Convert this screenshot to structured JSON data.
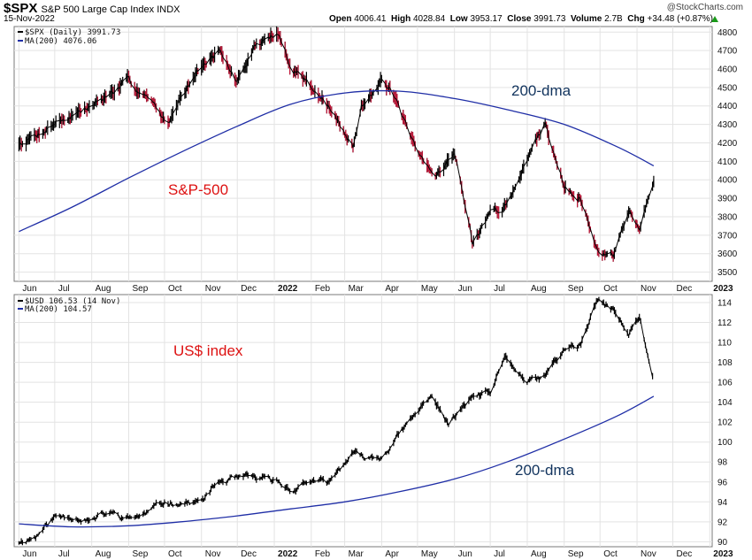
{
  "header": {
    "symbol": "$SPX",
    "description": "S&P 500 Large Cap Index INDX",
    "date": "15-Nov-2022",
    "brand": "@StockCharts.com",
    "ohlc": {
      "open_label": "Open",
      "open": "4006.41",
      "high_label": "High",
      "high": "4028.84",
      "low_label": "Low",
      "low": "3953.17",
      "close_label": "Close",
      "close": "3991.73",
      "volume_label": "Volume",
      "volume": "2.7B",
      "chg_label": "Chg",
      "chg": "+34.48 (+0.87%)"
    }
  },
  "chart_data": [
    {
      "type": "line",
      "legend": [
        "$SPX (Daily) 3991.73",
        "MA(200) 4076.06"
      ],
      "annotations": [
        "S&P-500",
        "200-dma"
      ],
      "x_ticks": [
        "Jun",
        "Jul",
        "Aug",
        "Sep",
        "Oct",
        "Nov",
        "Dec",
        "2022",
        "Feb",
        "Mar",
        "Apr",
        "May",
        "Jun",
        "Jul",
        "Aug",
        "Sep",
        "Oct",
        "Nov",
        "Dec",
        "2023"
      ],
      "y_ticks": [
        3500,
        3600,
        3700,
        3800,
        3900,
        4000,
        4100,
        4200,
        4300,
        4400,
        4500,
        4600,
        4700,
        4800
      ],
      "ylim": [
        3450,
        4830
      ],
      "xlim": [
        "2021-05-28",
        "2023-01-03"
      ],
      "log_scale": false,
      "grid": true,
      "series": [
        {
          "name": "$SPX (Daily)",
          "color": "#000000",
          "x": [
            "2021-06-01",
            "2021-06-15",
            "2021-07-01",
            "2021-07-15",
            "2021-08-01",
            "2021-08-15",
            "2021-09-01",
            "2021-09-15",
            "2021-10-04",
            "2021-10-15",
            "2021-11-01",
            "2021-11-15",
            "2021-12-01",
            "2021-12-15",
            "2022-01-03",
            "2022-01-15",
            "2022-02-01",
            "2022-02-15",
            "2022-03-08",
            "2022-03-15",
            "2022-04-01",
            "2022-04-15",
            "2022-05-01",
            "2022-05-15",
            "2022-06-01",
            "2022-06-16",
            "2022-07-01",
            "2022-07-15",
            "2022-08-01",
            "2022-08-16",
            "2022-09-01",
            "2022-09-15",
            "2022-09-30",
            "2022-10-12",
            "2022-10-25",
            "2022-11-03",
            "2022-11-15"
          ],
          "values": [
            4200,
            4240,
            4310,
            4350,
            4400,
            4460,
            4530,
            4460,
            4300,
            4470,
            4620,
            4690,
            4530,
            4720,
            4790,
            4620,
            4510,
            4400,
            4170,
            4390,
            4560,
            4400,
            4130,
            4020,
            4150,
            3660,
            3820,
            3860,
            4120,
            4300,
            3980,
            3900,
            3590,
            3580,
            3850,
            3720,
            4000
          ]
        },
        {
          "name": "MA(200)",
          "color": "#1f2ea6",
          "x": [
            "2021-06-01",
            "2021-07-15",
            "2021-09-01",
            "2021-10-15",
            "2021-12-01",
            "2022-01-15",
            "2022-03-01",
            "2022-04-15",
            "2022-06-01",
            "2022-07-15",
            "2022-09-01",
            "2022-10-15",
            "2022-11-15"
          ],
          "values": [
            3720,
            3850,
            4010,
            4150,
            4290,
            4410,
            4470,
            4480,
            4440,
            4380,
            4300,
            4180,
            4076
          ]
        }
      ]
    },
    {
      "type": "line",
      "legend": [
        "$USD 106.53 (14 Nov)",
        "MA(200) 104.57"
      ],
      "annotations": [
        "US$ index",
        "200-dma"
      ],
      "x_ticks": [
        "Jun",
        "Jul",
        "Aug",
        "Sep",
        "Oct",
        "Nov",
        "Dec",
        "2022",
        "Feb",
        "Mar",
        "Apr",
        "May",
        "Jun",
        "Jul",
        "Aug",
        "Sep",
        "Oct",
        "Nov",
        "Dec",
        "2023"
      ],
      "y_ticks": [
        90,
        92,
        94,
        96,
        98,
        100,
        102,
        104,
        106,
        108,
        110,
        112,
        114
      ],
      "ylim": [
        89.5,
        114.8
      ],
      "xlim": [
        "2021-05-28",
        "2023-01-03"
      ],
      "log_scale": false,
      "grid": true,
      "series": [
        {
          "name": "$USD",
          "color": "#000000",
          "x": [
            "2021-06-01",
            "2021-06-15",
            "2021-07-01",
            "2021-07-15",
            "2021-08-01",
            "2021-08-15",
            "2021-09-01",
            "2021-09-15",
            "2021-10-01",
            "2021-10-15",
            "2021-11-01",
            "2021-11-15",
            "2021-12-01",
            "2021-12-15",
            "2022-01-03",
            "2022-01-15",
            "2022-02-01",
            "2022-02-15",
            "2022-03-08",
            "2022-03-15",
            "2022-04-01",
            "2022-04-15",
            "2022-05-01",
            "2022-05-13",
            "2022-05-27",
            "2022-06-15",
            "2022-07-01",
            "2022-07-14",
            "2022-08-01",
            "2022-08-15",
            "2022-09-01",
            "2022-09-15",
            "2022-09-28",
            "2022-10-12",
            "2022-10-25",
            "2022-11-03",
            "2022-11-14"
          ],
          "values": [
            90.0,
            90.5,
            92.5,
            92.6,
            92.1,
            92.9,
            92.3,
            92.8,
            94.0,
            93.9,
            94.0,
            96.0,
            96.3,
            96.4,
            96.0,
            95.2,
            96.2,
            95.8,
            98.9,
            98.4,
            98.5,
            100.6,
            103.0,
            104.8,
            101.7,
            104.5,
            104.9,
            108.5,
            105.9,
            106.5,
            109.3,
            109.7,
            114.1,
            113.3,
            110.7,
            112.6,
            106.5
          ]
        },
        {
          "name": "MA(200)",
          "color": "#1f2ea6",
          "x": [
            "2021-06-01",
            "2021-07-15",
            "2021-09-01",
            "2021-10-15",
            "2021-12-01",
            "2022-01-15",
            "2022-03-01",
            "2022-04-15",
            "2022-06-01",
            "2022-07-15",
            "2022-09-01",
            "2022-10-15",
            "2022-11-15"
          ],
          "values": [
            91.8,
            91.5,
            91.6,
            92.0,
            92.6,
            93.3,
            94.0,
            95.0,
            96.3,
            98.0,
            100.3,
            102.6,
            104.6
          ]
        }
      ]
    }
  ]
}
